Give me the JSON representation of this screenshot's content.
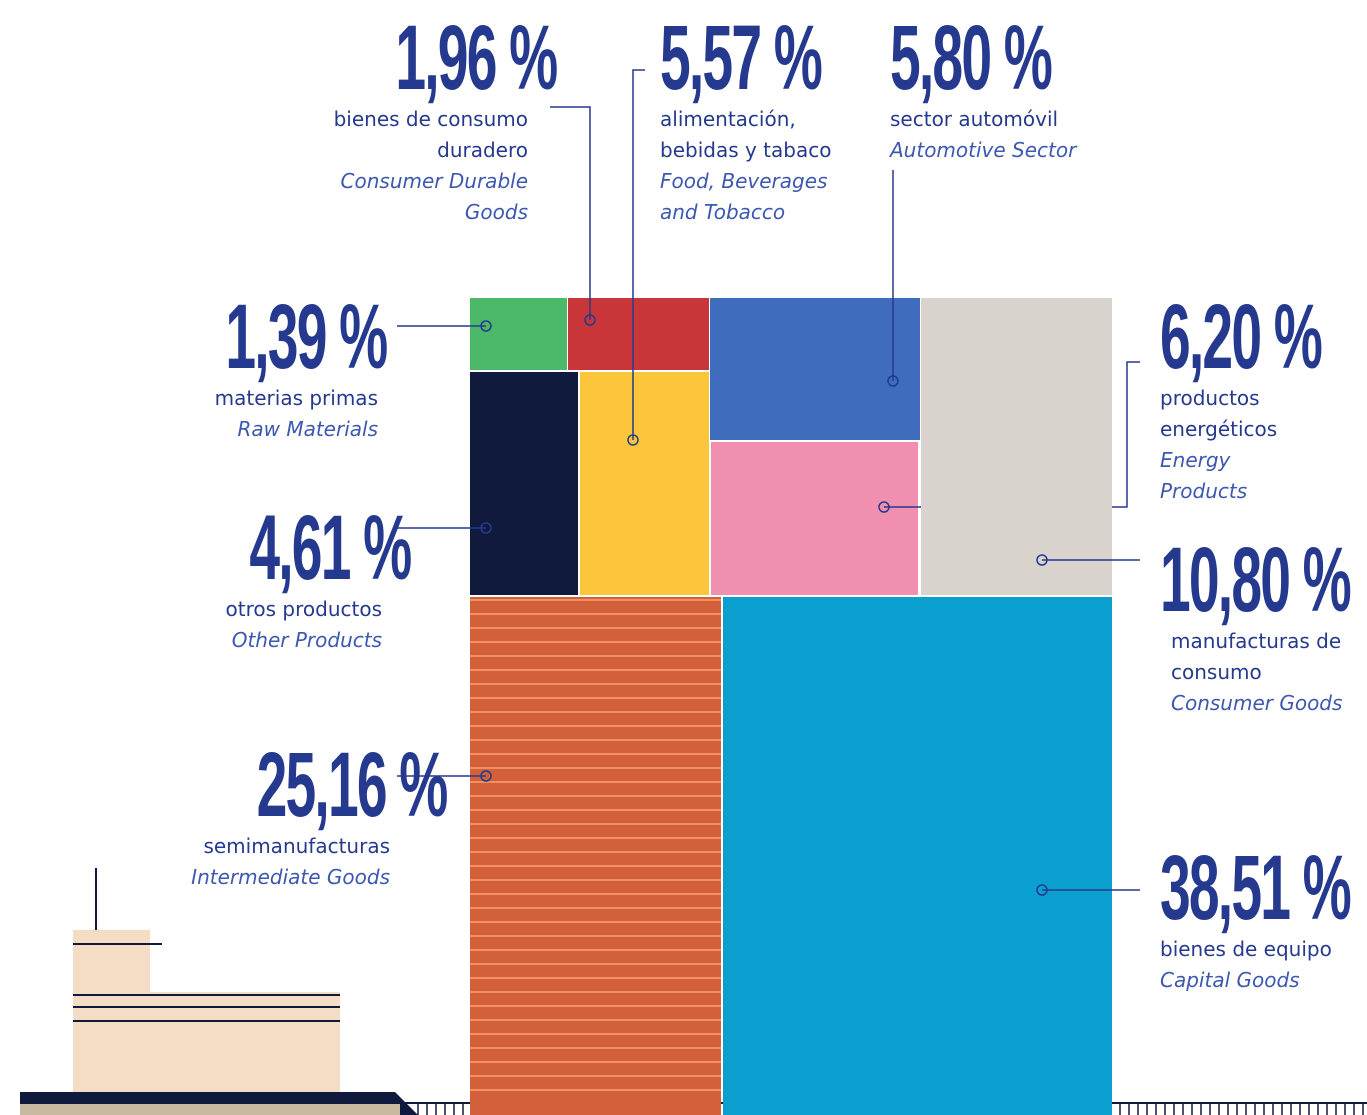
{
  "chart_data": {
    "type": "treemap",
    "categories": [
      "materias primas",
      "bienes de consumo duradero",
      "alimentación, bebidas y tabaco",
      "sector automóvil",
      "productos energéticos",
      "manufacturas de consumo",
      "otros productos",
      "semimanufacturas",
      "bienes de equipo"
    ],
    "categories_en": [
      "Raw Materials",
      "Consumer Durable Goods",
      "Food, Beverages and Tobacco",
      "Automotive Sector",
      "Energy Products",
      "Consumer Goods",
      "Other Products",
      "Intermediate Goods",
      "Capital Goods"
    ],
    "values": [
      1.39,
      1.96,
      5.57,
      5.8,
      6.2,
      10.8,
      4.61,
      25.16,
      38.51
    ],
    "value_labels": [
      "1,39 %",
      "1,96 %",
      "5,57 %",
      "5,80 %",
      "6,20 %",
      "10,80 %",
      "4,61 %",
      "25,16 %",
      "38,51 %"
    ],
    "colors": [
      "#4cb86a",
      "#c8363a",
      "#fcc63a",
      "#3f6cbc",
      "#f08fb0",
      "#d8d3cc",
      "#0f1a3d",
      "#d2603a",
      "#0a9fce"
    ]
  }
}
